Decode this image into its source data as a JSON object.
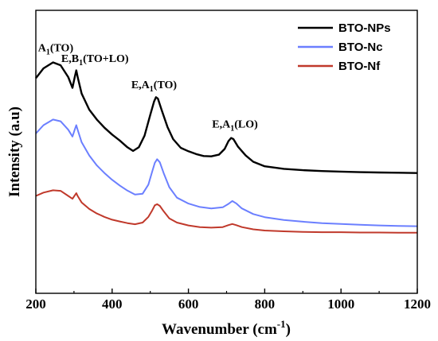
{
  "chart_data": {
    "type": "line",
    "xlabel": "Wavenumber (cm",
    "xlabel_sup": "-1",
    "xlabel_close": ")",
    "ylabel": "Intensity (a.u)",
    "xlim": [
      200,
      1200
    ],
    "ylim": [
      0,
      1
    ],
    "xticks": [
      200,
      400,
      600,
      800,
      1000,
      1200
    ],
    "yticks_shown": false,
    "legend_position": "top-right",
    "series": [
      {
        "name": "BTO-NPs",
        "color": "#000000",
        "points": [
          [
            200,
            0.76
          ],
          [
            220,
            0.795
          ],
          [
            245,
            0.816
          ],
          [
            265,
            0.806
          ],
          [
            285,
            0.764
          ],
          [
            296,
            0.726
          ],
          [
            302,
            0.765
          ],
          [
            306,
            0.788
          ],
          [
            310,
            0.762
          ],
          [
            320,
            0.706
          ],
          [
            340,
            0.649
          ],
          [
            360,
            0.614
          ],
          [
            380,
            0.585
          ],
          [
            400,
            0.561
          ],
          [
            420,
            0.54
          ],
          [
            440,
            0.516
          ],
          [
            455,
            0.503
          ],
          [
            470,
            0.516
          ],
          [
            485,
            0.557
          ],
          [
            500,
            0.631
          ],
          [
            510,
            0.678
          ],
          [
            515,
            0.693
          ],
          [
            520,
            0.688
          ],
          [
            530,
            0.647
          ],
          [
            545,
            0.588
          ],
          [
            560,
            0.545
          ],
          [
            580,
            0.514
          ],
          [
            600,
            0.502
          ],
          [
            620,
            0.492
          ],
          [
            640,
            0.485
          ],
          [
            660,
            0.484
          ],
          [
            680,
            0.49
          ],
          [
            695,
            0.51
          ],
          [
            705,
            0.538
          ],
          [
            712,
            0.549
          ],
          [
            718,
            0.545
          ],
          [
            730,
            0.518
          ],
          [
            750,
            0.487
          ],
          [
            770,
            0.465
          ],
          [
            800,
            0.449
          ],
          [
            850,
            0.44
          ],
          [
            900,
            0.435
          ],
          [
            950,
            0.432
          ],
          [
            1000,
            0.43
          ],
          [
            1050,
            0.428
          ],
          [
            1100,
            0.427
          ],
          [
            1150,
            0.426
          ],
          [
            1200,
            0.425
          ]
        ]
      },
      {
        "name": "BTO-Nc",
        "color": "#6b7fff",
        "points": [
          [
            200,
            0.565
          ],
          [
            220,
            0.594
          ],
          [
            245,
            0.614
          ],
          [
            265,
            0.608
          ],
          [
            285,
            0.578
          ],
          [
            296,
            0.554
          ],
          [
            302,
            0.579
          ],
          [
            306,
            0.594
          ],
          [
            310,
            0.576
          ],
          [
            320,
            0.534
          ],
          [
            340,
            0.487
          ],
          [
            360,
            0.452
          ],
          [
            380,
            0.425
          ],
          [
            400,
            0.401
          ],
          [
            420,
            0.381
          ],
          [
            440,
            0.363
          ],
          [
            460,
            0.349
          ],
          [
            480,
            0.352
          ],
          [
            495,
            0.384
          ],
          [
            505,
            0.43
          ],
          [
            512,
            0.461
          ],
          [
            518,
            0.474
          ],
          [
            525,
            0.463
          ],
          [
            535,
            0.425
          ],
          [
            550,
            0.375
          ],
          [
            570,
            0.338
          ],
          [
            600,
            0.317
          ],
          [
            630,
            0.305
          ],
          [
            660,
            0.3
          ],
          [
            690,
            0.304
          ],
          [
            705,
            0.316
          ],
          [
            715,
            0.326
          ],
          [
            725,
            0.318
          ],
          [
            740,
            0.3
          ],
          [
            770,
            0.28
          ],
          [
            800,
            0.269
          ],
          [
            850,
            0.259
          ],
          [
            900,
            0.253
          ],
          [
            950,
            0.248
          ],
          [
            1000,
            0.245
          ],
          [
            1050,
            0.242
          ],
          [
            1100,
            0.24
          ],
          [
            1150,
            0.238
          ],
          [
            1200,
            0.237
          ]
        ]
      },
      {
        "name": "BTO-Nf",
        "color": "#c0392b",
        "points": [
          [
            200,
            0.344
          ],
          [
            220,
            0.356
          ],
          [
            245,
            0.364
          ],
          [
            265,
            0.362
          ],
          [
            285,
            0.344
          ],
          [
            296,
            0.334
          ],
          [
            302,
            0.346
          ],
          [
            306,
            0.354
          ],
          [
            310,
            0.343
          ],
          [
            320,
            0.321
          ],
          [
            340,
            0.298
          ],
          [
            360,
            0.282
          ],
          [
            380,
            0.27
          ],
          [
            400,
            0.26
          ],
          [
            420,
            0.254
          ],
          [
            440,
            0.248
          ],
          [
            460,
            0.244
          ],
          [
            480,
            0.25
          ],
          [
            495,
            0.27
          ],
          [
            505,
            0.293
          ],
          [
            512,
            0.311
          ],
          [
            518,
            0.315
          ],
          [
            525,
            0.309
          ],
          [
            535,
            0.29
          ],
          [
            550,
            0.265
          ],
          [
            570,
            0.25
          ],
          [
            600,
            0.24
          ],
          [
            630,
            0.234
          ],
          [
            660,
            0.232
          ],
          [
            690,
            0.234
          ],
          [
            705,
            0.241
          ],
          [
            715,
            0.245
          ],
          [
            725,
            0.241
          ],
          [
            740,
            0.234
          ],
          [
            770,
            0.226
          ],
          [
            800,
            0.222
          ],
          [
            850,
            0.219
          ],
          [
            900,
            0.217
          ],
          [
            950,
            0.216
          ],
          [
            1000,
            0.216
          ],
          [
            1050,
            0.215
          ],
          [
            1100,
            0.215
          ],
          [
            1150,
            0.214
          ],
          [
            1200,
            0.214
          ]
        ]
      }
    ],
    "annotations": [
      {
        "id": "a1to",
        "pre": "A",
        "sub": "1",
        "post": "(TO)",
        "x": 252,
        "y": 0.855
      },
      {
        "id": "eb1",
        "pre": "E,B",
        "sub": "1",
        "post": "(TO+LO)",
        "x": 355,
        "y": 0.818
      },
      {
        "id": "ea1to",
        "pre": "E,A",
        "sub": "1",
        "post": "(TO)",
        "x": 510,
        "y": 0.725
      },
      {
        "id": "ea1lo",
        "pre": "E,A",
        "sub": "1",
        "post": "(LO)",
        "x": 722,
        "y": 0.585
      }
    ]
  }
}
